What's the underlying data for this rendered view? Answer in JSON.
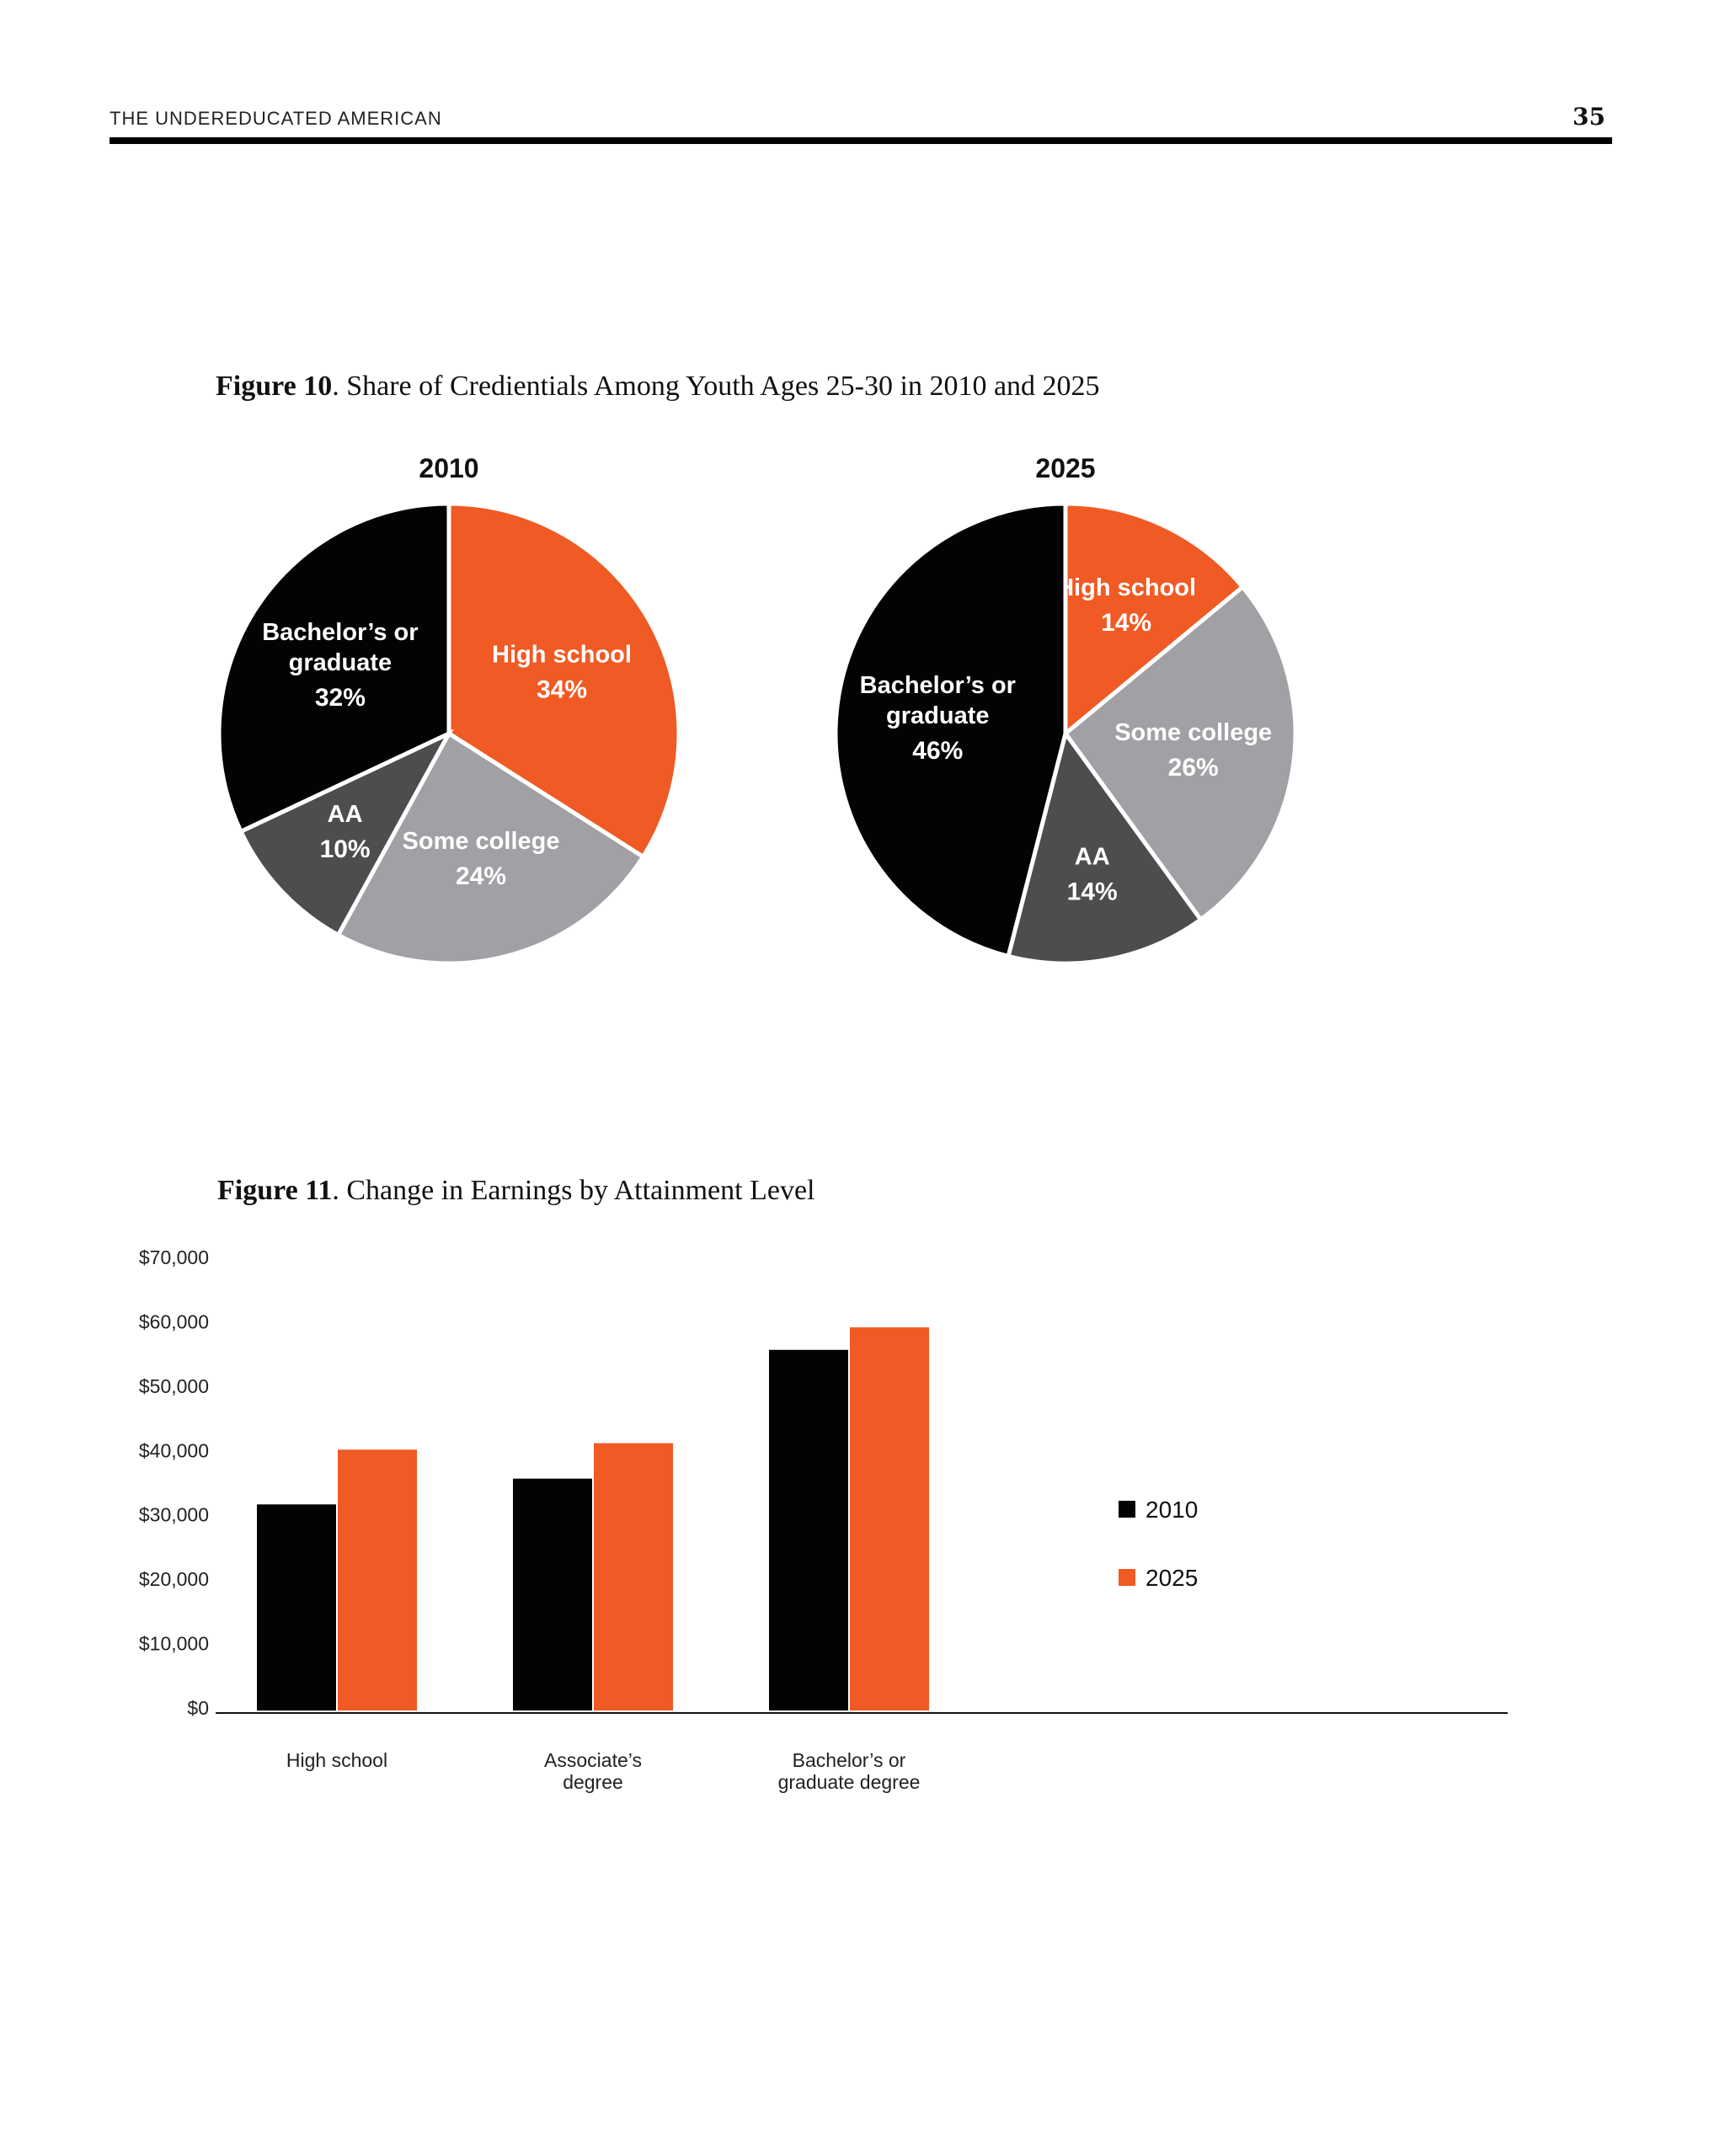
{
  "header": {
    "running_title": "THE UNDEREDUCATED AMERICAN",
    "page_number": "35"
  },
  "figure10": {
    "label": "Figure 10",
    "title": ". Share of Credientials Among Youth Ages 25-30 in 2010 and 2025"
  },
  "figure11": {
    "label": "Figure 11",
    "title": ". Change in Earnings by Attainment Level"
  },
  "colors": {
    "high_school": "#F05A24",
    "some_college": "#A1A1A5",
    "aa": "#4D4D4F",
    "bachelors": "#030305",
    "series_2010": "#030305",
    "series_2025": "#F05A24"
  },
  "chart_data": [
    {
      "type": "pie",
      "title": "2010",
      "slices": [
        {
          "label": "High school",
          "value": 34,
          "display": "34%"
        },
        {
          "label": "Some college",
          "value": 24,
          "display": "24%"
        },
        {
          "label": "AA",
          "value": 10,
          "display": "10%"
        },
        {
          "label": "Bachelor’s or graduate",
          "value": 32,
          "display": "32%"
        }
      ]
    },
    {
      "type": "pie",
      "title": "2025",
      "slices": [
        {
          "label": "High school",
          "value": 14,
          "display": "14%"
        },
        {
          "label": "Some college",
          "value": 26,
          "display": "26%"
        },
        {
          "label": "AA",
          "value": 14,
          "display": "14%"
        },
        {
          "label": "Bachelor’s or graduate",
          "value": 46,
          "display": "46%"
        }
      ]
    },
    {
      "type": "bar",
      "categories": [
        "High school",
        "Associate’s degree",
        "Bachelor’s or graduate degree"
      ],
      "series": [
        {
          "name": "2010",
          "values": [
            31500,
            35500,
            55500
          ]
        },
        {
          "name": "2025",
          "values": [
            40000,
            41000,
            59000
          ]
        }
      ],
      "ylim": [
        0,
        70000
      ],
      "yticks": [
        "$0",
        "$10,000",
        "$20,000",
        "$30,000",
        "$40,000",
        "$50,000",
        "$60,000",
        "$70,000"
      ],
      "legend": "right"
    }
  ]
}
